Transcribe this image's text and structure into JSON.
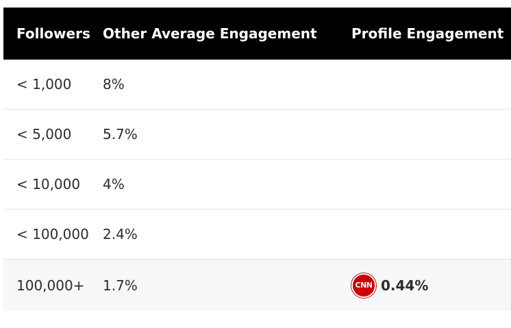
{
  "table": {
    "headers": [
      "Followers",
      "Other Average Engagement",
      "Profile Engagement"
    ],
    "rows": [
      {
        "followers": "< 1,000",
        "other": "8%",
        "profile": ""
      },
      {
        "followers": "< 5,000",
        "other": "5.7%",
        "profile": ""
      },
      {
        "followers": "< 10,000",
        "other": "4%",
        "profile": ""
      },
      {
        "followers": "< 100,000",
        "other": "2.4%",
        "profile": ""
      },
      {
        "followers": "100,000+",
        "other": "1.7%",
        "profile": "0.44%",
        "profile_logo_text": "CNN",
        "profile_logo_icon": "cnn-logo-icon"
      }
    ]
  },
  "colors": {
    "header_bg": "#000000",
    "header_text": "#ffffff",
    "highlight_row_bg": "#f6f7f9",
    "logo_red": "#cc0000"
  }
}
